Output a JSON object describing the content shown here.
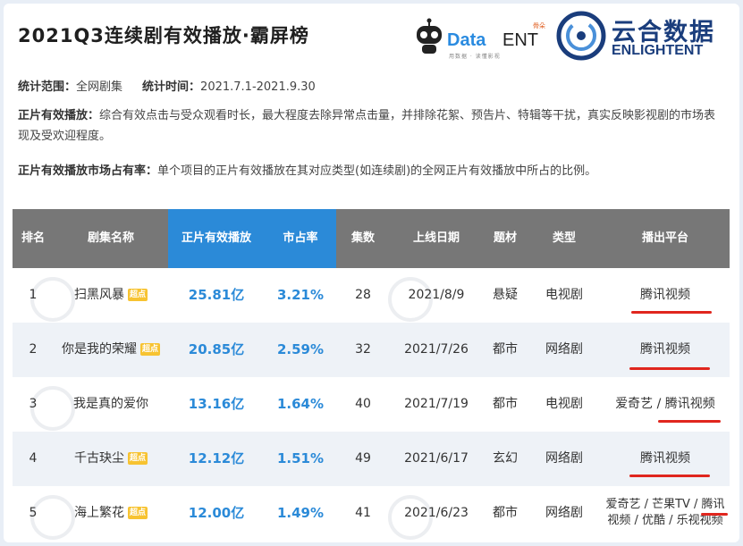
{
  "title": "2021Q3连续剧有效播放·霸屏榜",
  "logos": {
    "data_text": "Data",
    "ent_text": "ENT",
    "ent_badge": "骨朵",
    "data_sub": "用数据 · 读懂影视",
    "brand_cn": "云合数据",
    "brand_en": "ENLIGHTENT"
  },
  "info": {
    "scope_label": "统计范围：",
    "scope_value": "全网剧集",
    "time_label": "统计时间：",
    "time_value": "2021.7.1-2021.9.30",
    "valid_label": "正片有效播放：",
    "valid_text": "综合有效点击与受众观看时长，最大程度去除异常点击量，并排除花絮、预告片、特辑等干扰，真实反映影视剧的市场表现及受欢迎程度。",
    "share_label": "正片有效播放市场占有率：",
    "share_text": "单个项目的正片有效播放在其对应类型(如连续剧)的全网正片有效播放中所占的比例。"
  },
  "columns": [
    "排名",
    "剧集名称",
    "正片有效播放",
    "市占率",
    "集数",
    "上线日期",
    "题材",
    "类型",
    "播出平台"
  ],
  "badge_label": "超点",
  "rows": [
    {
      "rank": "1",
      "name": "扫黑风暴",
      "badge": true,
      "plays": "25.81亿",
      "share": "3.21%",
      "episodes": "28",
      "date": "2021/8/9",
      "genre": "悬疑",
      "type": "电视剧",
      "platform": "腾讯视频"
    },
    {
      "rank": "2",
      "name": "你是我的荣耀",
      "badge": true,
      "plays": "20.85亿",
      "share": "2.59%",
      "episodes": "32",
      "date": "2021/7/26",
      "genre": "都市",
      "type": "网络剧",
      "platform": "腾讯视频"
    },
    {
      "rank": "3",
      "name": "我是真的爱你",
      "badge": false,
      "plays": "13.16亿",
      "share": "1.64%",
      "episodes": "40",
      "date": "2021/7/19",
      "genre": "都市",
      "type": "电视剧",
      "platform": "爱奇艺 / 腾讯视频"
    },
    {
      "rank": "4",
      "name": "千古玦尘",
      "badge": true,
      "plays": "12.12亿",
      "share": "1.51%",
      "episodes": "49",
      "date": "2021/6/17",
      "genre": "玄幻",
      "type": "网络剧",
      "platform": "腾讯视频"
    },
    {
      "rank": "5",
      "name": "海上繁花",
      "badge": true,
      "plays": "12.00亿",
      "share": "1.49%",
      "episodes": "41",
      "date": "2021/6/23",
      "genre": "都市",
      "type": "网络剧",
      "platform_line1": "爱奇艺 / 芒果TV / 腾讯",
      "platform_line2": "视频 / 优酷 / 乐视视频"
    }
  ],
  "colors": {
    "header_gray": "#777777",
    "header_highlight": "#2b8ad8",
    "value_blue": "#2b8ad8",
    "badge_yellow": "#f7c331",
    "underline_red": "#e0261e"
  }
}
